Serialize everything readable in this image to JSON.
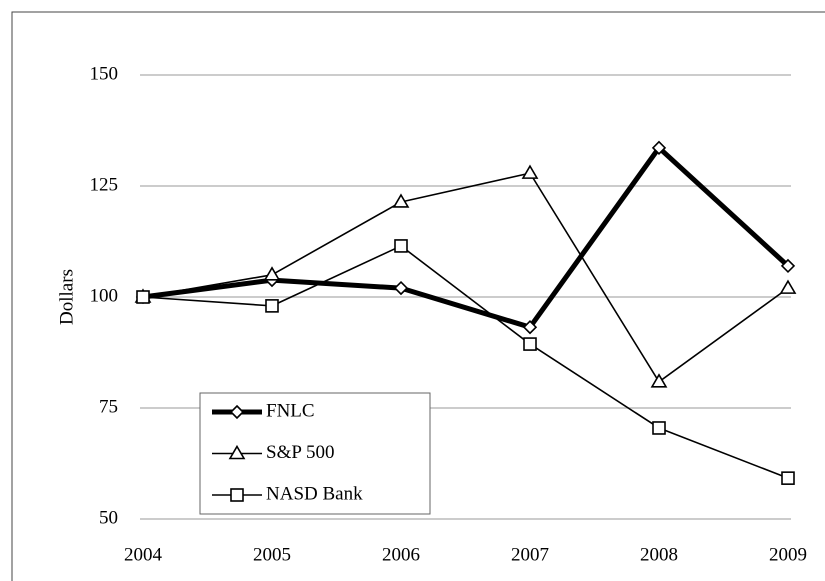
{
  "chart_data": {
    "type": "line",
    "y_label": "Dollars",
    "categories": [
      "2004",
      "2005",
      "2006",
      "2007",
      "2008",
      "2009"
    ],
    "series": [
      {
        "name": "FNLC",
        "color": "#000000",
        "marker": "diamond",
        "values": [
          100,
          103.8,
          102,
          93.2,
          133.6,
          107
        ]
      },
      {
        "name": "S&P 500",
        "color": "#000000",
        "marker": "triangle",
        "values": [
          100,
          105,
          121.4,
          127.9,
          80.9,
          102
        ]
      },
      {
        "name": "NASD Bank",
        "color": "#000000",
        "marker": "square",
        "values": [
          100,
          98,
          111.5,
          89.4,
          70.5,
          59.2
        ]
      }
    ],
    "ylim": [
      50,
      150
    ],
    "yticks": [
      50,
      75,
      100,
      125,
      150
    ],
    "grid": true,
    "legend": "lower left"
  }
}
